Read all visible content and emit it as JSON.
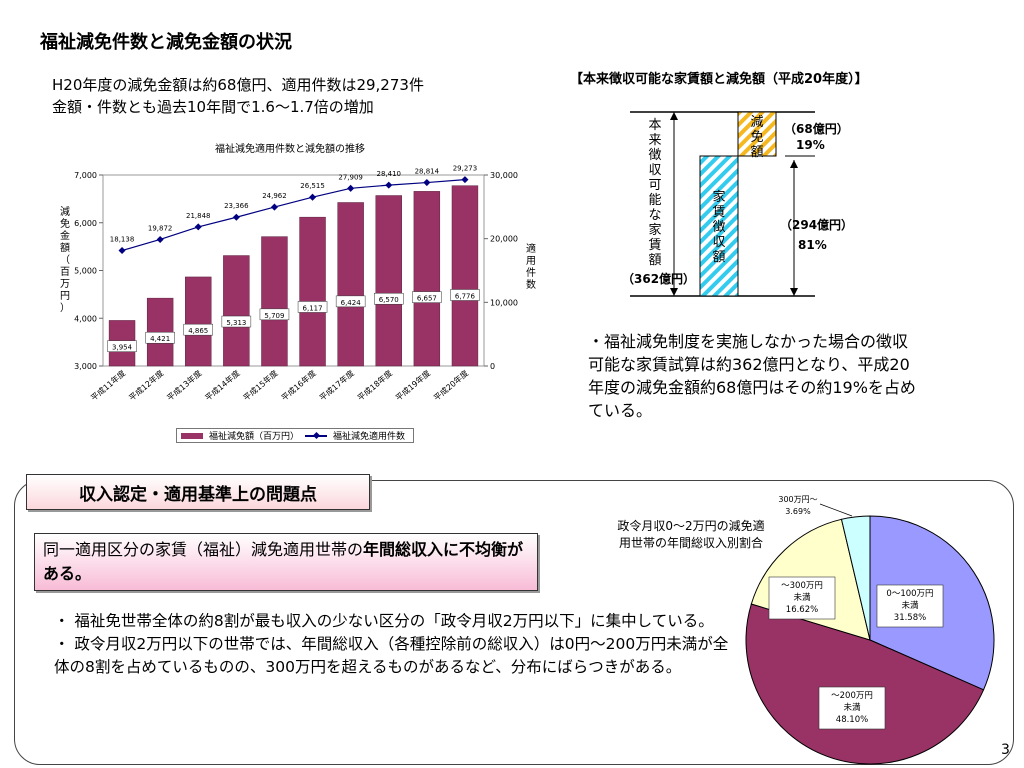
{
  "page": {
    "title": "福祉減免件数と減免金額の状況",
    "summary_line1": "H20年度の減免金額は約68億円、適用件数は29,273件",
    "summary_line2": "金額・件数とも過去10年間で1.6～1.7倍の増加",
    "page_number": "3"
  },
  "bar_chart_ylabel_left": [
    "減",
    "免",
    "金",
    "額",
    "（",
    "百",
    "万",
    "円",
    "）"
  ],
  "bar_chart_ylabel_right": [
    "適",
    "用",
    "件",
    "数"
  ],
  "chart_data": [
    {
      "type": "bar",
      "title": "福祉減免適用件数と減免額の推移",
      "categories": [
        "平成11年度",
        "平成12年度",
        "平成13年度",
        "平成14年度",
        "平成15年度",
        "平成16年度",
        "平成17年度",
        "平成18年度",
        "平成19年度",
        "平成20年度"
      ],
      "series": [
        {
          "name": "福祉減免額（百万円）",
          "type": "bar",
          "axis": "left",
          "color": "#993366",
          "values": [
            3954,
            4421,
            4865,
            5313,
            5709,
            6117,
            6424,
            6570,
            6657,
            6776
          ],
          "labels": [
            "3,954",
            "4,421",
            "4,865",
            "5,313",
            "5,709",
            "6,117",
            "6,424",
            "6,570",
            "6,657",
            "6,776"
          ]
        },
        {
          "name": "福祉減免適用件数",
          "type": "line",
          "axis": "right",
          "color": "#000080",
          "values": [
            18138,
            19872,
            21848,
            23366,
            24962,
            26515,
            27909,
            28410,
            28814,
            29273
          ],
          "labels": [
            "18,138",
            "19,872",
            "21,848",
            "23,366",
            "24,962",
            "26,515",
            "27,909",
            "28,410",
            "28,814",
            "29,273"
          ]
        }
      ],
      "ylim_left": [
        3000,
        7000
      ],
      "yticks_left": [
        "3,000",
        "4,000",
        "5,000",
        "6,000",
        "7,000"
      ],
      "ylim_right": [
        0,
        30000
      ],
      "yticks_right": [
        "0",
        "10,000",
        "20,000",
        "30,000"
      ],
      "legend_position": "bottom"
    },
    {
      "type": "pie",
      "title": "政令月収0～2万円の減免適用世帯の年間総収入別割合",
      "slices": [
        {
          "label": "0～100万円未満",
          "value": 31.58,
          "pct": "31.58%",
          "color": "#9999ff"
        },
        {
          "label": "～200万円未満",
          "value": 48.1,
          "pct": "48.10%",
          "color": "#993366"
        },
        {
          "label": "～300万円未満",
          "value": 16.62,
          "pct": "16.62%",
          "color": "#ffffcc"
        },
        {
          "label": "300万円～",
          "value": 3.69,
          "pct": "3.69%",
          "color": "#ccffff"
        }
      ]
    }
  ],
  "diagram": {
    "title": "【本来徴収可能な家賃額と減免額（平成20年度）】",
    "left_label": "本来徴収可能な家賃額",
    "left_amount": "（362億円）",
    "rent_bar_label": "家賃徴収額",
    "rent_amount": "（294億円）",
    "rent_pct": "81%",
    "reduction_bar_label": "減免額",
    "reduction_amount": "（68億円）",
    "reduction_pct": "19%",
    "explanation": "・福祉減免制度を実施しなかった場合の徴収可能な家賃試算は約362億円となり、平成20年度の減免金額約68億円はその約19%を占めている。"
  },
  "section": {
    "label": "収入認定・適用基準上の問題点",
    "issue_plain": "同一適用区分の家賃（福祉）減免適用世帯の",
    "issue_bold": "年間総収入に不均衡がある。",
    "bullet1": "・ 福祉免世帯全体の約8割が最も収入の少ない区分の「政令月収2万円以下」に集中している。",
    "bullet2": "・ 政令月収2万円以下の世帯では、年間総収入（各種控除前の総収入）は0円～200万円未満が全体の8割を占めているものの、300万円を超えるものがあるなど、分布にばらつきがある。"
  }
}
